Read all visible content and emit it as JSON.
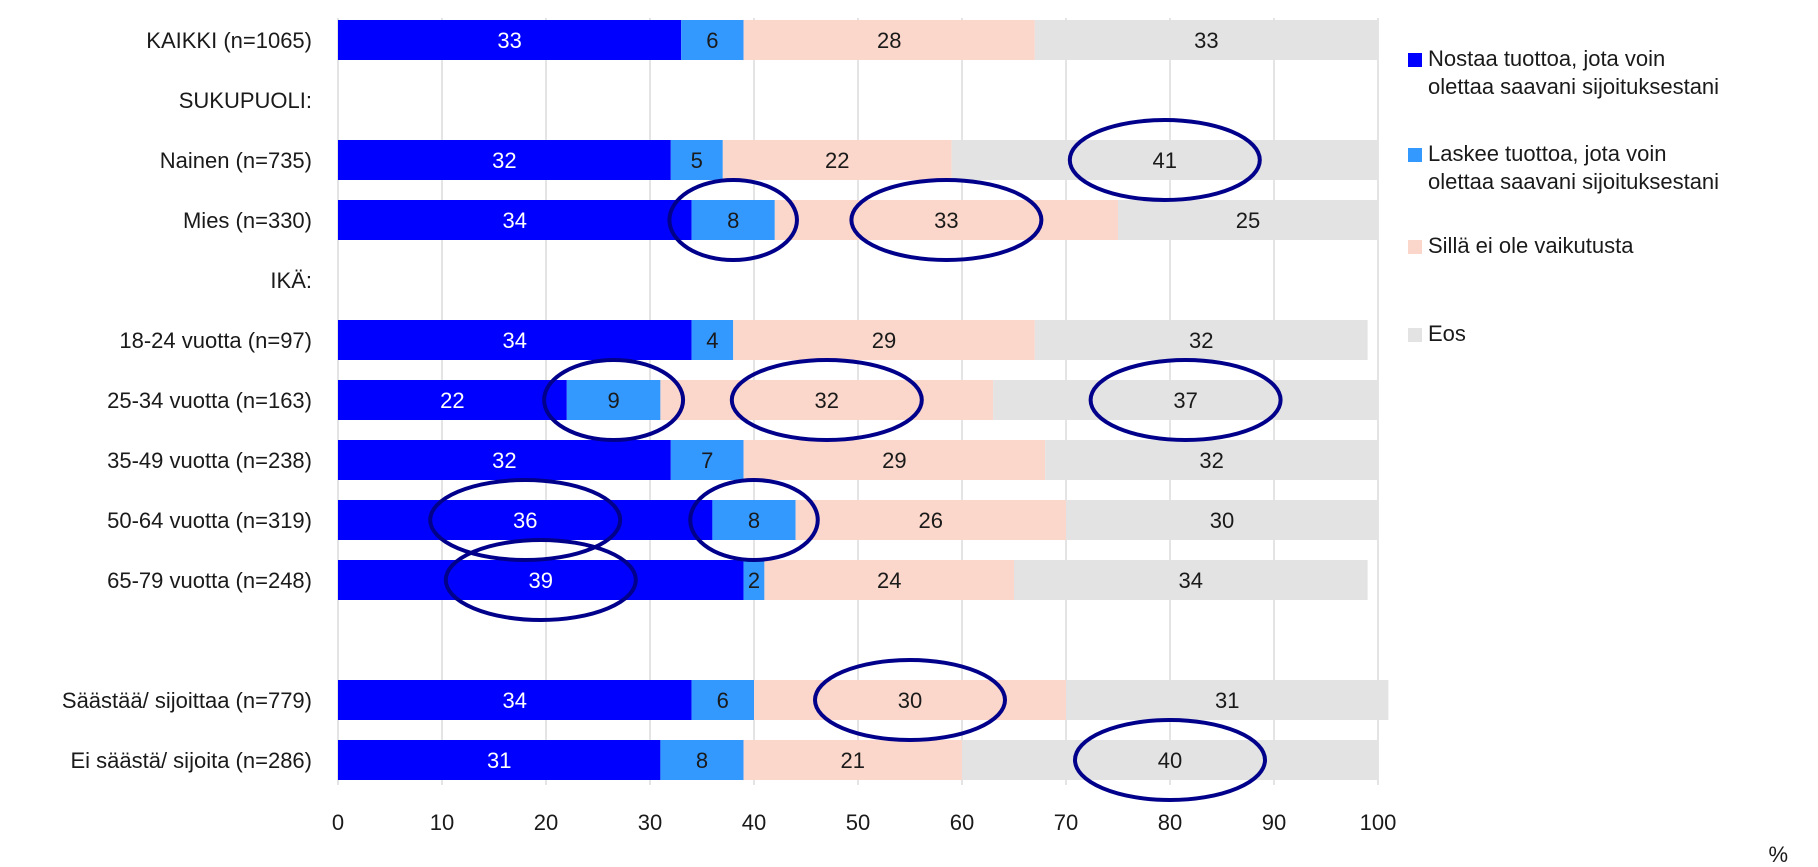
{
  "chart_data": {
    "type": "bar",
    "orientation": "horizontal",
    "stacked": true,
    "unit": "%",
    "categories": [
      "KAIKKI (n=1065)",
      "SUKUPUOLI:",
      "Nainen (n=735)",
      "Mies (n=330)",
      "IKÄ:",
      "18-24 vuotta (n=97)",
      "25-34 vuotta (n=163)",
      "35-49 vuotta (n=238)",
      "50-64 vuotta (n=319)",
      "65-79 vuotta (n=248)",
      "",
      "Säästää/ sijoittaa (n=779)",
      "Ei säästä/ sijoita (n=286)"
    ],
    "series": [
      {
        "name": "Nostaa tuottoa, jota voin olettaa saavani sijoituksestani",
        "color": "#0000ff",
        "values": [
          33,
          null,
          32,
          34,
          null,
          34,
          22,
          32,
          36,
          39,
          null,
          34,
          31
        ]
      },
      {
        "name": "Laskee tuottoa, jota voin olettaa saavani sijoituksestani",
        "color": "#3399ff",
        "values": [
          6,
          null,
          5,
          8,
          null,
          4,
          9,
          7,
          8,
          2,
          null,
          6,
          8
        ]
      },
      {
        "name": "Sillä ei ole vaikutusta",
        "color": "#fad7ca",
        "values": [
          28,
          null,
          22,
          33,
          null,
          29,
          32,
          29,
          26,
          24,
          null,
          30,
          21
        ]
      },
      {
        "name": "Eos",
        "color": "#e3e3e3",
        "values": [
          33,
          null,
          41,
          25,
          null,
          32,
          37,
          32,
          30,
          34,
          null,
          31,
          40
        ]
      }
    ],
    "legend": [
      {
        "line1": "Nostaa tuottoa, jota voin",
        "line2": "olettaa saavani sijoituksestani"
      },
      {
        "line1": "Laskee tuottoa, jota voin",
        "line2": "olettaa saavani sijoituksestani"
      },
      {
        "line1": "Sillä ei ole vaikutusta",
        "line2": ""
      },
      {
        "line1": "Eos",
        "line2": ""
      }
    ],
    "xlim": [
      0,
      100
    ],
    "xticks": [
      0,
      10,
      20,
      30,
      40,
      50,
      60,
      70,
      80,
      90,
      100
    ],
    "grid": true,
    "legend_position": "right",
    "highlighted_segments": [
      {
        "category": "Nainen (n=735)",
        "series": "Eos"
      },
      {
        "category": "Mies (n=330)",
        "series": "Laskee tuottoa, jota voin olettaa saavani sijoituksestani"
      },
      {
        "category": "Mies (n=330)",
        "series": "Sillä ei ole vaikutusta"
      },
      {
        "category": "25-34 vuotta (n=163)",
        "series": "Laskee tuottoa, jota voin olettaa saavani sijoituksestani"
      },
      {
        "category": "25-34 vuotta (n=163)",
        "series": "Sillä ei ole vaikutusta"
      },
      {
        "category": "25-34 vuotta (n=163)",
        "series": "Eos"
      },
      {
        "category": "50-64 vuotta (n=319)",
        "series": "Nostaa tuottoa, jota voin olettaa saavani sijoituksestani"
      },
      {
        "category": "50-64 vuotta (n=319)",
        "series": "Laskee tuottoa, jota voin olettaa saavani sijoituksestani"
      },
      {
        "category": "65-79 vuotta (n=248)",
        "series": "Nostaa tuottoa, jota voin olettaa saavani sijoituksestani"
      },
      {
        "category": "Säästää/ sijoittaa (n=779)",
        "series": "Sillä ei ole vaikutusta"
      },
      {
        "category": "Ei säästä/ sijoita (n=286)",
        "series": "Eos"
      }
    ],
    "highlight_color": "#00008b"
  }
}
